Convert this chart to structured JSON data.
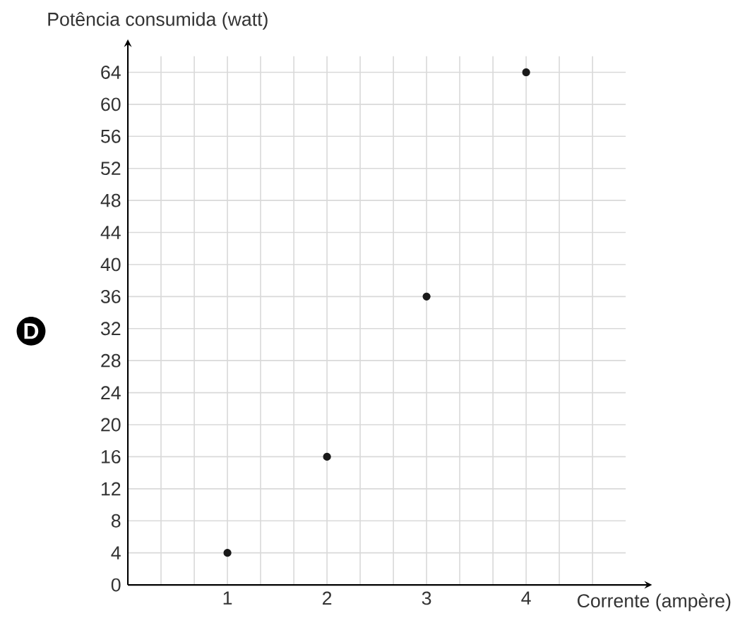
{
  "chart_data": {
    "type": "scatter",
    "xlabel": "Corrente (ampère)",
    "ylabel": "Potência consumida (watt)",
    "annotations": [
      "D"
    ],
    "x": [
      1,
      2,
      3,
      4
    ],
    "series": [
      {
        "color": "#1a1a1a",
        "values": [
          4,
          16,
          36,
          64
        ]
      }
    ],
    "grid": true,
    "xlim": [
      0,
      5
    ],
    "ylim": [
      0,
      66
    ],
    "xticks": [
      {
        "value": 0.333,
        "label": null
      },
      {
        "value": 0.667,
        "label": null
      },
      1,
      {
        "value": 1.333,
        "label": null
      },
      {
        "value": 1.667,
        "label": null
      },
      2,
      {
        "value": 2.333,
        "label": null
      },
      {
        "value": 2.667,
        "label": null
      },
      3,
      {
        "value": 3.333,
        "label": null
      },
      {
        "value": 3.667,
        "label": null
      },
      4,
      {
        "value": 4.333,
        "label": null
      },
      {
        "value": 4.667,
        "label": null
      }
    ],
    "yticks": [
      0,
      4,
      8,
      12,
      16,
      20,
      24,
      28,
      32,
      36,
      40,
      44,
      48,
      52,
      56,
      60,
      64
    ]
  }
}
